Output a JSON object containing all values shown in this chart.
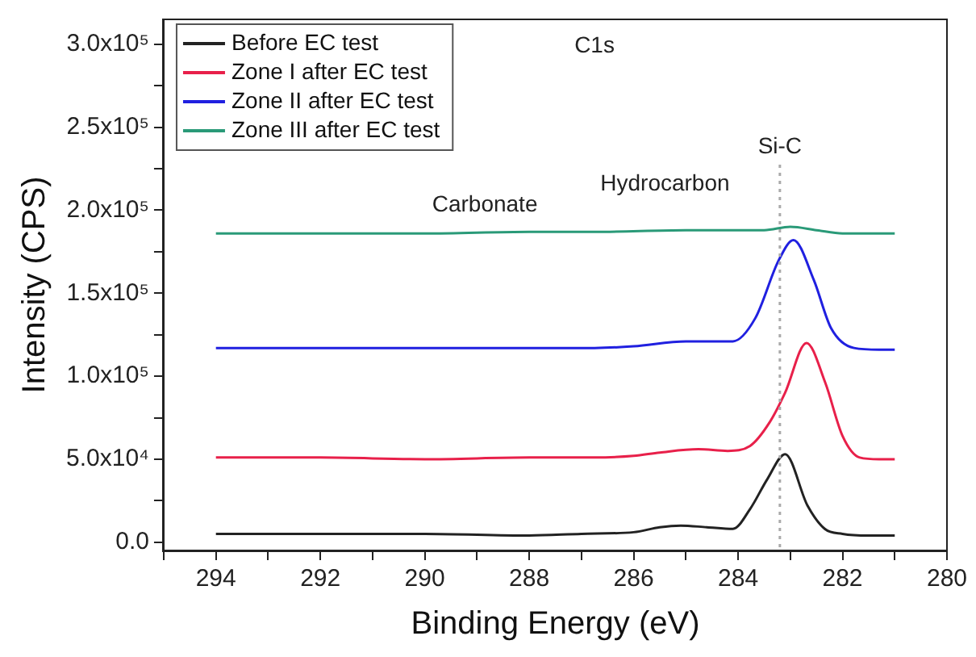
{
  "chart_data": {
    "type": "line",
    "xlabel": "Binding Energy (eV)",
    "ylabel": "Intensity (CPS)",
    "xlim": [
      295,
      280
    ],
    "ylim": [
      -5000,
      315000
    ],
    "xticks": [
      {
        "value": 295,
        "label": null
      },
      294,
      {
        "value": 293,
        "label": null
      },
      292,
      {
        "value": 291,
        "label": null
      },
      290,
      {
        "value": 289,
        "label": null
      },
      288,
      {
        "value": 287,
        "label": null
      },
      286,
      {
        "value": 285,
        "label": null
      },
      284,
      {
        "value": 283,
        "label": null
      },
      282,
      {
        "value": 281,
        "label": null
      },
      280
    ],
    "yticks": [
      {
        "value": 0,
        "label": "0.0"
      },
      {
        "value": 25000,
        "label": null
      },
      {
        "value": 50000,
        "label": "5.0x10⁴"
      },
      {
        "value": 75000,
        "label": null
      },
      {
        "value": 100000,
        "label": "1.0x10⁵"
      },
      {
        "value": 125000,
        "label": null
      },
      {
        "value": 150000,
        "label": "1.5x10⁵"
      },
      {
        "value": 175000,
        "label": null
      },
      {
        "value": 200000,
        "label": "2.0x10⁵"
      },
      {
        "value": 225000,
        "label": null
      },
      {
        "value": 250000,
        "label": "2.5x10⁵"
      },
      {
        "value": 275000,
        "label": null
      },
      {
        "value": 300000,
        "label": "3.0x10⁵"
      }
    ],
    "grid": false,
    "legend": "top left",
    "marker": "none",
    "line_style": "solid",
    "series": [
      {
        "name": "Before EC test",
        "color": "#222222",
        "x": [
          294,
          292,
          290,
          288,
          287,
          286,
          285.5,
          285.1,
          284.6,
          284.1,
          283.77,
          283.44,
          283.1,
          282.67,
          282.34,
          282.0,
          281.5,
          281
        ],
        "values": [
          5000,
          5000,
          5000,
          4000,
          5000,
          6000,
          9000,
          10000,
          9000,
          8000,
          20000,
          38000,
          53000,
          22000,
          8000,
          5000,
          4000,
          4000
        ]
      },
      {
        "name": "Zone I after EC test",
        "color": "#e8204a",
        "x": [
          294,
          292,
          290,
          288,
          286.75,
          286,
          285.5,
          284.76,
          284.2,
          283.77,
          283.4,
          283.1,
          282.69,
          282.33,
          282.0,
          281.67,
          281.3,
          281
        ],
        "values": [
          51000,
          51000,
          50000,
          51000,
          51000,
          52000,
          54000,
          56000,
          55000,
          58000,
          72000,
          90000,
          120000,
          96000,
          64000,
          51000,
          50000,
          50000
        ]
      },
      {
        "name": "Zone II after EC test",
        "color": "#2020e0",
        "x": [
          294,
          292,
          290,
          288,
          286.75,
          286,
          285,
          284.1,
          283.67,
          283.22,
          282.94,
          282.55,
          282.22,
          281.78,
          281.3,
          281
        ],
        "values": [
          117000,
          117000,
          117000,
          117000,
          117000,
          118000,
          121000,
          121000,
          135000,
          170000,
          182000,
          158000,
          129000,
          117000,
          116000,
          116000
        ]
      },
      {
        "name": "Zone III after EC test",
        "color": "#2a9a78",
        "x": [
          294,
          292,
          290,
          288,
          286.75,
          285,
          284,
          283.5,
          283.0,
          282.5,
          282.0,
          281
        ],
        "values": [
          186000,
          186000,
          186000,
          187000,
          187000,
          188000,
          188000,
          188000,
          190000,
          188000,
          186000,
          186000
        ]
      }
    ],
    "ref_lines": [
      {
        "axis": "x",
        "value": 283.2,
        "label": "Si-C",
        "color": "#aaaaaa",
        "line_style": "dotted"
      }
    ],
    "annotations": [
      "C1s",
      "Carbonate",
      "Hydrocarbon"
    ]
  }
}
